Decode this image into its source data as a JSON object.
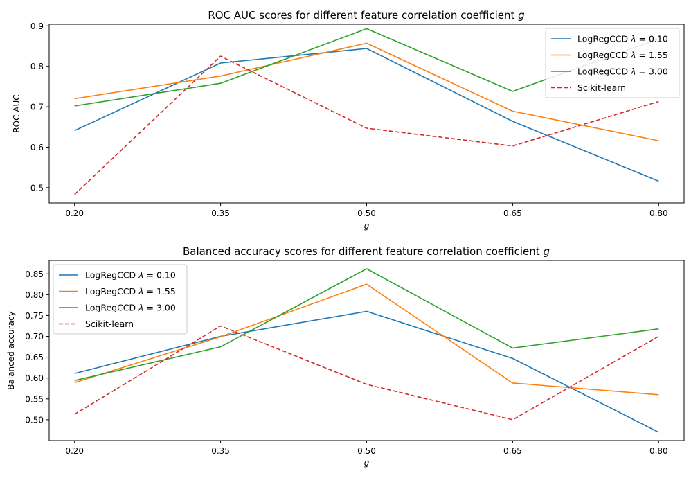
{
  "chart_data": [
    {
      "type": "line",
      "title": "ROC AUC scores for different feature correlation coefficient g",
      "title_text": "ROC AUC scores for different feature correlation coefficient ",
      "title_var": "g",
      "xlabel": "g",
      "ylabel": "ROC AUC",
      "x": [
        0.2,
        0.35,
        0.5,
        0.65,
        0.8
      ],
      "x_tick_labels": [
        "0.20",
        "0.35",
        "0.50",
        "0.65",
        "0.80"
      ],
      "y_ticks": [
        0.5,
        0.6,
        0.7,
        0.8,
        0.9
      ],
      "y_tick_labels": [
        "0.5",
        "0.6",
        "0.7",
        "0.8",
        "0.9"
      ],
      "ylim": [
        0.462,
        0.904
      ],
      "grid": false,
      "legend": "top-right",
      "series": [
        {
          "name": "LogRegCCD λ = 0.10",
          "name_prefix": "LogRegCCD ",
          "name_sym": "λ",
          "name_val": " = 0.10",
          "color": "#1f77b4",
          "dash": "solid",
          "values": [
            0.641,
            0.808,
            0.844,
            0.664,
            0.516
          ]
        },
        {
          "name": "LogRegCCD λ = 1.55",
          "name_prefix": "LogRegCCD ",
          "name_sym": "λ",
          "name_val": " = 1.55",
          "color": "#ff7f0e",
          "dash": "solid",
          "values": [
            0.72,
            0.776,
            0.857,
            0.689,
            0.616
          ]
        },
        {
          "name": "LogRegCCD λ = 3.00",
          "name_prefix": "LogRegCCD ",
          "name_sym": "λ",
          "name_val": " = 3.00",
          "color": "#2ca02c",
          "dash": "solid",
          "values": [
            0.702,
            0.758,
            0.893,
            0.738,
            0.868
          ]
        },
        {
          "name": "Scikit-learn",
          "name_prefix": "Scikit-learn",
          "name_sym": "",
          "name_val": "",
          "color": "#d62728",
          "dash": "dashed",
          "values": [
            0.483,
            0.825,
            0.647,
            0.603,
            0.713
          ]
        }
      ]
    },
    {
      "type": "line",
      "title": "Balanced accuracy scores for different feature correlation coefficient g",
      "title_text": "Balanced accuracy scores for different feature correlation coefficient ",
      "title_var": "g",
      "xlabel": "g",
      "ylabel": "Balanced accuracy",
      "x": [
        0.2,
        0.35,
        0.5,
        0.65,
        0.8
      ],
      "x_tick_labels": [
        "0.20",
        "0.35",
        "0.50",
        "0.65",
        "0.80"
      ],
      "y_ticks": [
        0.5,
        0.55,
        0.6,
        0.65,
        0.7,
        0.75,
        0.8,
        0.85
      ],
      "y_tick_labels": [
        "0.50",
        "0.55",
        "0.60",
        "0.65",
        "0.70",
        "0.75",
        "0.80",
        "0.85"
      ],
      "ylim": [
        0.45,
        0.882
      ],
      "grid": false,
      "legend": "top-left",
      "series": [
        {
          "name": "LogRegCCD λ = 0.10",
          "name_prefix": "LogRegCCD ",
          "name_sym": "λ",
          "name_val": " = 0.10",
          "color": "#1f77b4",
          "dash": "solid",
          "values": [
            0.611,
            0.7,
            0.76,
            0.647,
            0.47
          ]
        },
        {
          "name": "LogRegCCD λ = 1.55",
          "name_prefix": "LogRegCCD ",
          "name_sym": "λ",
          "name_val": " = 1.55",
          "color": "#ff7f0e",
          "dash": "solid",
          "values": [
            0.589,
            0.699,
            0.825,
            0.588,
            0.56
          ]
        },
        {
          "name": "LogRegCCD λ = 3.00",
          "name_prefix": "LogRegCCD ",
          "name_sym": "λ",
          "name_val": " = 3.00",
          "color": "#2ca02c",
          "dash": "solid",
          "values": [
            0.594,
            0.675,
            0.862,
            0.672,
            0.718
          ]
        },
        {
          "name": "Scikit-learn",
          "name_prefix": "Scikit-learn",
          "name_sym": "",
          "name_val": "",
          "color": "#d62728",
          "dash": "dashed",
          "values": [
            0.513,
            0.725,
            0.585,
            0.5,
            0.7
          ]
        }
      ]
    }
  ]
}
